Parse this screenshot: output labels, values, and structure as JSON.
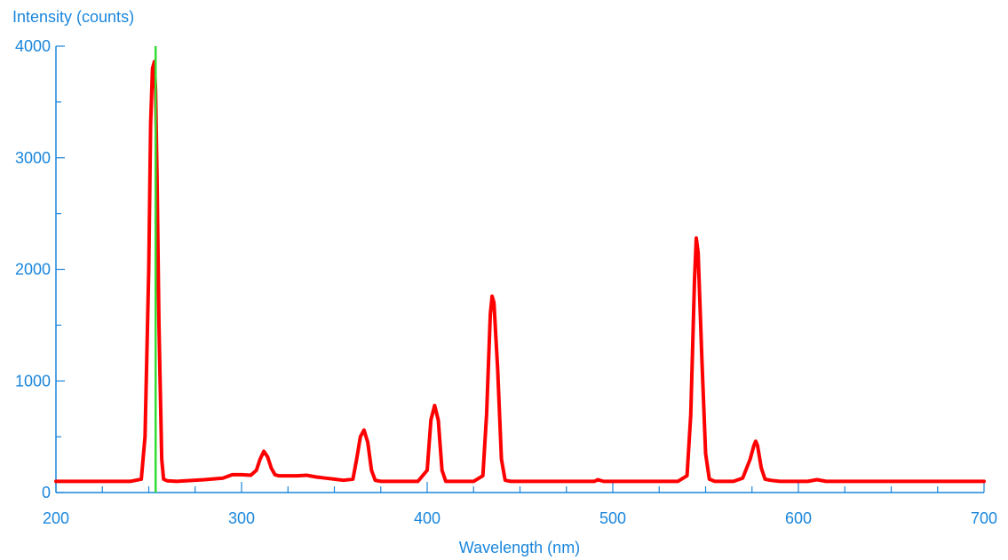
{
  "chart_data": {
    "type": "line",
    "title": "",
    "xlabel": "Wavelength (nm)",
    "ylabel": "Intensity (counts)",
    "xlim": [
      200,
      700
    ],
    "ylim": [
      0,
      4000
    ],
    "x_ticks": [
      "200",
      "300",
      "400",
      "500",
      "600",
      "700"
    ],
    "y_ticks": [
      "0",
      "1000",
      "2000",
      "3000",
      "4000"
    ],
    "grid": false,
    "colors": {
      "axis": "#1a86dc",
      "series": "#ff0000",
      "marker": "#33dd33"
    },
    "marker_line": {
      "x": 253.7
    },
    "series": [
      {
        "color": "#ff0000",
        "x": [
          200,
          240,
          246,
          248,
          250,
          251,
          252,
          253,
          253.7,
          254.5,
          255.5,
          257,
          258,
          260,
          265,
          280,
          290,
          295,
          300,
          305,
          308,
          310,
          312,
          314,
          316,
          318,
          320,
          325,
          330,
          335,
          340,
          345,
          350,
          355,
          360,
          362,
          364,
          366,
          368,
          370,
          372,
          375,
          395,
          400,
          402,
          404,
          406,
          408,
          410,
          425,
          430,
          432,
          434,
          435,
          436,
          438,
          440,
          442,
          445,
          490,
          492,
          495,
          535,
          540,
          542,
          544,
          545,
          546,
          548,
          550,
          552,
          555,
          565,
          570,
          574,
          576,
          577,
          578,
          580,
          582,
          585,
          590,
          605,
          610,
          615,
          700
        ],
        "y": [
          100,
          100,
          120,
          500,
          2000,
          3300,
          3800,
          3860,
          3600,
          2800,
          1500,
          300,
          120,
          105,
          100,
          115,
          130,
          160,
          160,
          155,
          200,
          300,
          370,
          320,
          220,
          160,
          150,
          150,
          150,
          155,
          140,
          130,
          120,
          110,
          120,
          300,
          500,
          560,
          450,
          200,
          110,
          100,
          100,
          200,
          650,
          780,
          650,
          200,
          100,
          100,
          150,
          700,
          1600,
          1760,
          1700,
          1100,
          300,
          110,
          100,
          100,
          115,
          100,
          100,
          150,
          700,
          1900,
          2280,
          2150,
          1200,
          350,
          120,
          100,
          100,
          130,
          300,
          420,
          460,
          420,
          220,
          120,
          110,
          100,
          100,
          115,
          100,
          100
        ]
      }
    ]
  }
}
